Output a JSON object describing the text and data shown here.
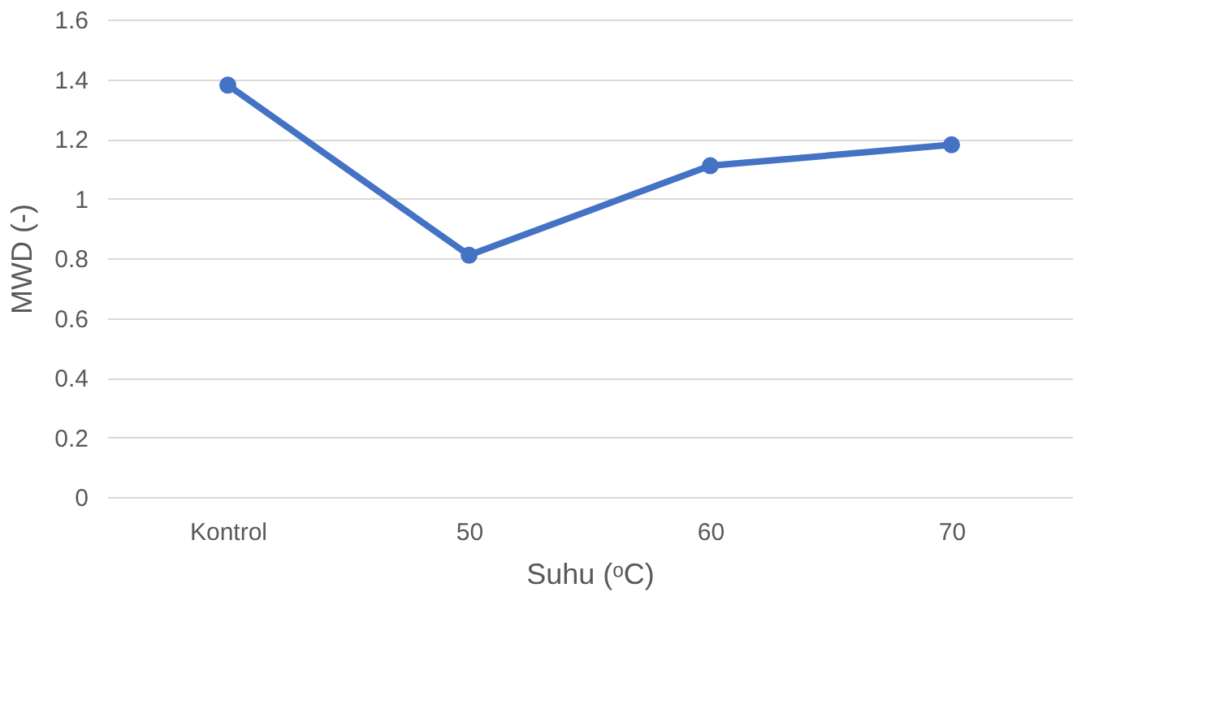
{
  "chart_data": {
    "type": "line",
    "xlabel": "Suhu (ᵒC)",
    "ylabel": "MWD (-)",
    "categories": [
      "Kontrol",
      "50",
      "60",
      "70"
    ],
    "series": [
      {
        "color": "#4472c4",
        "values": [
          1.38,
          0.81,
          1.11,
          1.18
        ]
      }
    ],
    "ylim": [
      0,
      1.6
    ],
    "yticks": [
      0,
      0.2,
      0.4,
      0.6,
      0.8,
      1,
      1.2,
      1.4,
      1.6
    ],
    "grid": "y",
    "marker": "circle",
    "line_style": "solid",
    "legend": false
  }
}
